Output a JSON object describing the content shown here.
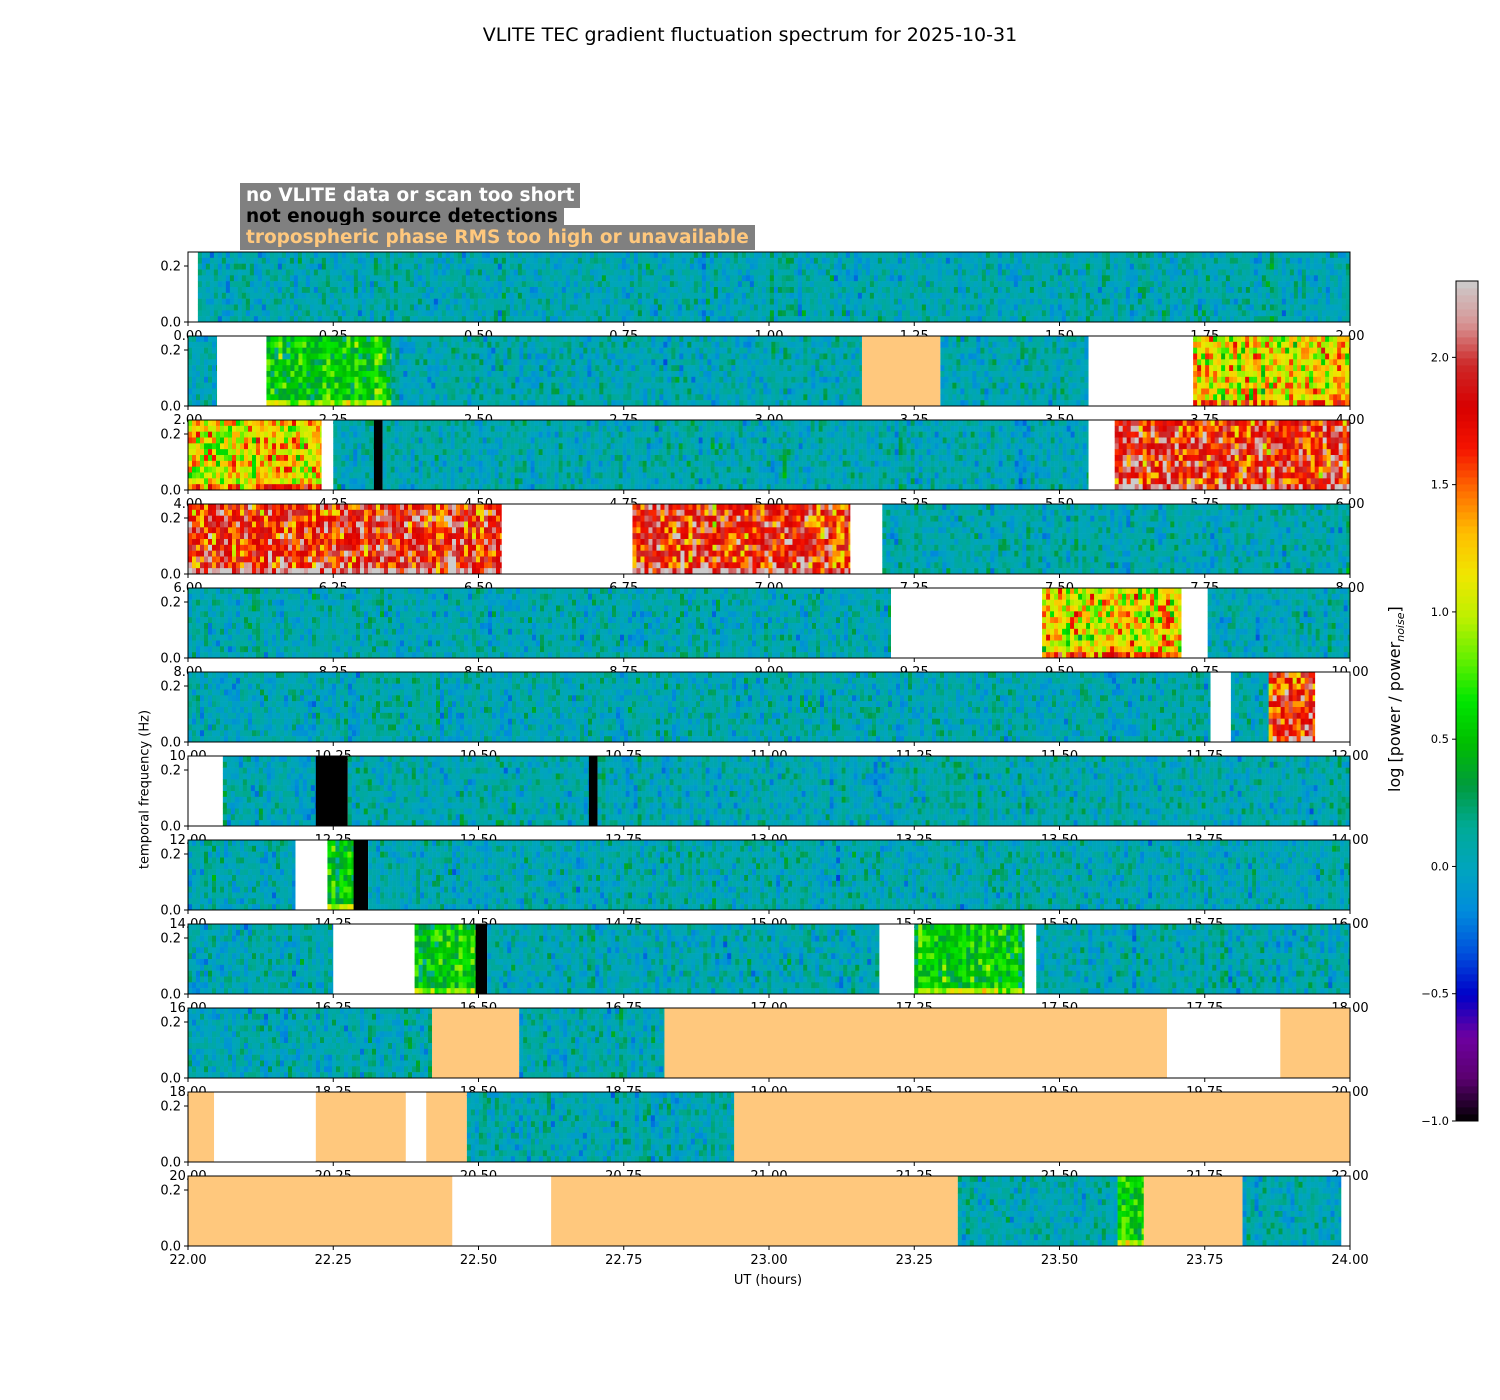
{
  "title": "VLITE TEC gradient fluctuation spectrum for 2025-10-31",
  "legend": {
    "no_data": "no VLITE data or scan too short",
    "no_detections": "not enough source detections",
    "tropo": "tropospheric phase RMS too high or unavailable"
  },
  "colors": {
    "no_data": "#ffffff",
    "no_detections": "#000000",
    "tropo": "#ffc87d",
    "legend_bg": "#808080"
  },
  "chart_data": {
    "type": "heatmap",
    "title": "VLITE TEC gradient fluctuation spectrum for 2025-10-31",
    "xlabel": "UT (hours)",
    "ylabel": "temporal frequency (Hz)",
    "ylim": [
      0,
      0.25
    ],
    "yticks": [
      "0.0",
      "0.2"
    ],
    "colorbar": {
      "label": "log [power / power",
      "label_sub": "noise",
      "label_end": "]",
      "range": [
        -1.0,
        2.3
      ],
      "ticks": [
        "-1.0",
        "-0.5",
        "0.0",
        "0.5",
        "1.0",
        "1.5",
        "2.0"
      ]
    },
    "panels": [
      {
        "xlim": [
          0,
          2
        ],
        "xticks": [
          "0.00",
          "0.25",
          "0.50",
          "0.75",
          "1.00",
          "1.25",
          "1.50",
          "1.75",
          "2.00"
        ],
        "segments": [
          {
            "start": 0.0,
            "end": 0.017,
            "state": "nodata"
          },
          {
            "start": 0.017,
            "end": 2.0,
            "state": "quiet"
          }
        ]
      },
      {
        "xlim": [
          2,
          4
        ],
        "xticks": [
          "2.00",
          "2.25",
          "2.50",
          "2.75",
          "3.00",
          "3.25",
          "3.50",
          "3.75",
          "4.00"
        ],
        "segments": [
          {
            "start": 2.0,
            "end": 2.05,
            "state": "quiet"
          },
          {
            "start": 2.05,
            "end": 2.135,
            "state": "nodata"
          },
          {
            "start": 2.135,
            "end": 2.35,
            "state": "mild"
          },
          {
            "start": 2.35,
            "end": 3.16,
            "state": "quiet"
          },
          {
            "start": 3.16,
            "end": 3.295,
            "state": "tropo"
          },
          {
            "start": 3.295,
            "end": 3.55,
            "state": "quiet"
          },
          {
            "start": 3.55,
            "end": 3.73,
            "state": "nodata"
          },
          {
            "start": 3.73,
            "end": 4.0,
            "state": "active"
          }
        ]
      },
      {
        "xlim": [
          4,
          6
        ],
        "xticks": [
          "4.00",
          "4.25",
          "4.50",
          "4.75",
          "5.00",
          "5.25",
          "5.50",
          "5.75",
          "6.00"
        ],
        "segments": [
          {
            "start": 4.0,
            "end": 4.23,
            "state": "active"
          },
          {
            "start": 4.23,
            "end": 4.25,
            "state": "nodata"
          },
          {
            "start": 4.25,
            "end": 4.32,
            "state": "quiet"
          },
          {
            "start": 4.32,
            "end": 4.335,
            "state": "nodet"
          },
          {
            "start": 4.335,
            "end": 5.55,
            "state": "quiet"
          },
          {
            "start": 5.55,
            "end": 5.595,
            "state": "nodata"
          },
          {
            "start": 5.595,
            "end": 6.0,
            "state": "strong"
          }
        ]
      },
      {
        "xlim": [
          6,
          8
        ],
        "xticks": [
          "6.00",
          "6.25",
          "6.50",
          "6.75",
          "7.00",
          "7.25",
          "7.50",
          "7.75",
          "8.00"
        ],
        "segments": [
          {
            "start": 6.0,
            "end": 6.54,
            "state": "strong"
          },
          {
            "start": 6.54,
            "end": 6.765,
            "state": "nodata"
          },
          {
            "start": 6.765,
            "end": 7.14,
            "state": "strong"
          },
          {
            "start": 7.14,
            "end": 7.195,
            "state": "nodata"
          },
          {
            "start": 7.195,
            "end": 8.0,
            "state": "quiet"
          }
        ]
      },
      {
        "xlim": [
          8,
          10
        ],
        "xticks": [
          "8.00",
          "8.25",
          "8.50",
          "8.75",
          "9.00",
          "9.25",
          "9.50",
          "9.75",
          "10.00"
        ],
        "segments": [
          {
            "start": 8.0,
            "end": 9.21,
            "state": "quiet"
          },
          {
            "start": 9.21,
            "end": 9.47,
            "state": "nodata"
          },
          {
            "start": 9.47,
            "end": 9.71,
            "state": "active"
          },
          {
            "start": 9.71,
            "end": 9.755,
            "state": "nodata"
          },
          {
            "start": 9.755,
            "end": 10.0,
            "state": "quiet"
          }
        ]
      },
      {
        "xlim": [
          10,
          12
        ],
        "xticks": [
          "10.00",
          "10.25",
          "10.50",
          "10.75",
          "11.00",
          "11.25",
          "11.50",
          "11.75",
          "12.00"
        ],
        "segments": [
          {
            "start": 10.0,
            "end": 11.76,
            "state": "quiet"
          },
          {
            "start": 11.76,
            "end": 11.795,
            "state": "nodata"
          },
          {
            "start": 11.795,
            "end": 11.86,
            "state": "quiet"
          },
          {
            "start": 11.86,
            "end": 11.94,
            "state": "strong"
          },
          {
            "start": 11.94,
            "end": 12.0,
            "state": "nodata"
          }
        ]
      },
      {
        "xlim": [
          12,
          14
        ],
        "xticks": [
          "12.00",
          "12.25",
          "12.50",
          "12.75",
          "13.00",
          "13.25",
          "13.50",
          "13.75",
          "14.00"
        ],
        "segments": [
          {
            "start": 12.0,
            "end": 12.06,
            "state": "nodata"
          },
          {
            "start": 12.06,
            "end": 12.22,
            "state": "quiet"
          },
          {
            "start": 12.22,
            "end": 12.275,
            "state": "nodet"
          },
          {
            "start": 12.275,
            "end": 12.69,
            "state": "quiet"
          },
          {
            "start": 12.69,
            "end": 12.705,
            "state": "nodet"
          },
          {
            "start": 12.705,
            "end": 14.0,
            "state": "quiet"
          }
        ]
      },
      {
        "xlim": [
          14,
          16
        ],
        "xticks": [
          "14.00",
          "14.25",
          "14.50",
          "14.75",
          "15.00",
          "15.25",
          "15.50",
          "15.75",
          "16.00"
        ],
        "segments": [
          {
            "start": 14.0,
            "end": 14.185,
            "state": "quiet"
          },
          {
            "start": 14.185,
            "end": 14.24,
            "state": "nodata"
          },
          {
            "start": 14.24,
            "end": 14.285,
            "state": "mild"
          },
          {
            "start": 14.285,
            "end": 14.31,
            "state": "nodet"
          },
          {
            "start": 14.31,
            "end": 16.0,
            "state": "quiet"
          }
        ]
      },
      {
        "xlim": [
          16,
          18
        ],
        "xticks": [
          "16.00",
          "16.25",
          "16.50",
          "16.75",
          "17.00",
          "17.25",
          "17.50",
          "17.75",
          "18.00"
        ],
        "segments": [
          {
            "start": 16.0,
            "end": 16.25,
            "state": "quiet"
          },
          {
            "start": 16.25,
            "end": 16.39,
            "state": "nodata"
          },
          {
            "start": 16.39,
            "end": 16.495,
            "state": "mild"
          },
          {
            "start": 16.495,
            "end": 16.515,
            "state": "nodet"
          },
          {
            "start": 16.515,
            "end": 17.19,
            "state": "quiet"
          },
          {
            "start": 17.19,
            "end": 17.25,
            "state": "nodata"
          },
          {
            "start": 17.25,
            "end": 17.44,
            "state": "mild"
          },
          {
            "start": 17.44,
            "end": 17.46,
            "state": "nodata"
          },
          {
            "start": 17.46,
            "end": 18.0,
            "state": "quiet"
          }
        ]
      },
      {
        "xlim": [
          18,
          20
        ],
        "xticks": [
          "18.00",
          "18.25",
          "18.50",
          "18.75",
          "19.00",
          "19.25",
          "19.50",
          "19.75",
          "20.00"
        ],
        "segments": [
          {
            "start": 18.0,
            "end": 18.42,
            "state": "quiet"
          },
          {
            "start": 18.42,
            "end": 18.57,
            "state": "tropo"
          },
          {
            "start": 18.57,
            "end": 18.82,
            "state": "quiet"
          },
          {
            "start": 18.82,
            "end": 19.685,
            "state": "tropo"
          },
          {
            "start": 19.685,
            "end": 19.88,
            "state": "nodata"
          },
          {
            "start": 19.88,
            "end": 20.0,
            "state": "tropo"
          }
        ]
      },
      {
        "xlim": [
          20,
          22
        ],
        "xticks": [
          "20.00",
          "20.25",
          "20.50",
          "20.75",
          "21.00",
          "21.25",
          "21.50",
          "21.75",
          "22.00"
        ],
        "segments": [
          {
            "start": 20.0,
            "end": 20.045,
            "state": "tropo"
          },
          {
            "start": 20.045,
            "end": 20.22,
            "state": "nodata"
          },
          {
            "start": 20.22,
            "end": 20.375,
            "state": "tropo"
          },
          {
            "start": 20.375,
            "end": 20.41,
            "state": "nodata"
          },
          {
            "start": 20.41,
            "end": 20.48,
            "state": "tropo"
          },
          {
            "start": 20.48,
            "end": 20.94,
            "state": "quiet"
          },
          {
            "start": 20.94,
            "end": 22.0,
            "state": "tropo"
          }
        ]
      },
      {
        "xlim": [
          22,
          24
        ],
        "xticks": [
          "22.00",
          "22.25",
          "22.50",
          "22.75",
          "23.00",
          "23.25",
          "23.50",
          "23.75",
          "24.00"
        ],
        "segments": [
          {
            "start": 22.0,
            "end": 22.455,
            "state": "tropo"
          },
          {
            "start": 22.455,
            "end": 22.625,
            "state": "nodata"
          },
          {
            "start": 22.625,
            "end": 23.325,
            "state": "tropo"
          },
          {
            "start": 23.325,
            "end": 23.6,
            "state": "quiet"
          },
          {
            "start": 23.6,
            "end": 23.645,
            "state": "mild"
          },
          {
            "start": 23.645,
            "end": 23.815,
            "state": "tropo"
          },
          {
            "start": 23.815,
            "end": 23.985,
            "state": "quiet"
          },
          {
            "start": 23.985,
            "end": 24.0,
            "state": "nodata"
          }
        ]
      }
    ]
  }
}
